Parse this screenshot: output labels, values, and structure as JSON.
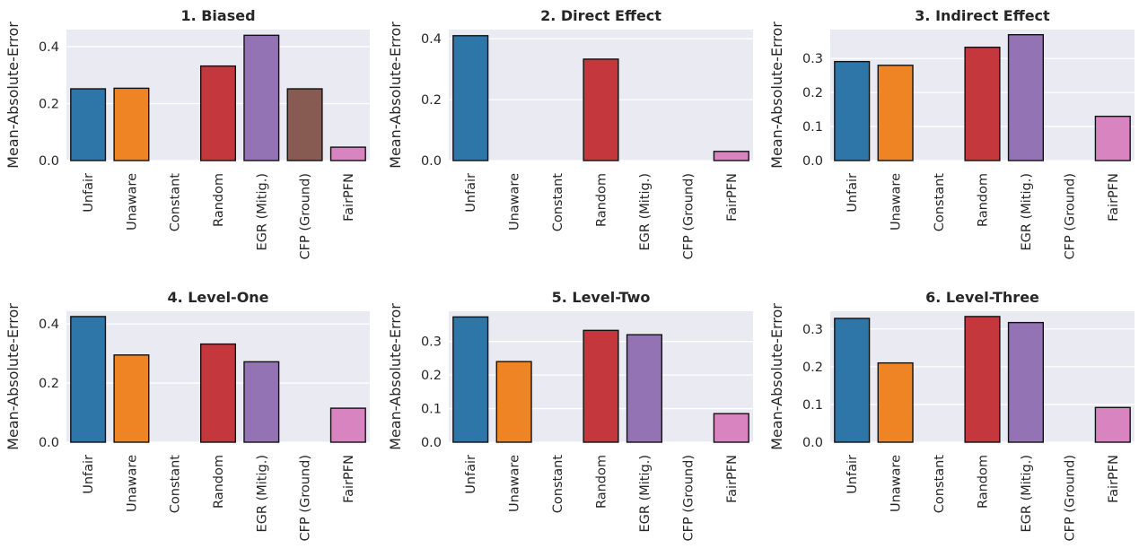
{
  "chart_data": [
    {
      "type": "bar",
      "title": "1. Biased",
      "ylabel": "Mean-Absolute-Error",
      "categories": [
        "Unfair",
        "Unaware",
        "Constant",
        "Random",
        "EGR (Mitig.)",
        "CFP (Ground)",
        "FairPFN"
      ],
      "values": [
        0.252,
        0.254,
        0.0,
        0.332,
        0.44,
        0.252,
        0.047
      ],
      "ylim": [
        0,
        0.46
      ],
      "yticks": [
        0.0,
        0.2,
        0.4
      ],
      "ytick_labels": [
        "0.0",
        "0.2",
        "0.4"
      ],
      "grid": true,
      "colors": [
        "#2e75a8",
        "#ee8424",
        "#31a031",
        "#c4373c",
        "#9373b3",
        "#875b52",
        "#d884c0"
      ]
    },
    {
      "type": "bar",
      "title": "2. Direct Effect",
      "ylabel": "Mean-Absolute-Error",
      "categories": [
        "Unfair",
        "Unaware",
        "Constant",
        "Random",
        "EGR (Mitig.)",
        "CFP (Ground)",
        "FairPFN"
      ],
      "values": [
        0.41,
        0.0,
        0.0,
        0.333,
        0.0,
        0.0,
        0.03
      ],
      "ylim": [
        0,
        0.43
      ],
      "yticks": [
        0.0,
        0.2,
        0.4
      ],
      "ytick_labels": [
        "0.0",
        "0.2",
        "0.4"
      ],
      "grid": true,
      "colors": [
        "#2e75a8",
        "#ee8424",
        "#31a031",
        "#c4373c",
        "#9373b3",
        "#875b52",
        "#d884c0"
      ]
    },
    {
      "type": "bar",
      "title": "3. Indirect Effect",
      "ylabel": "Mean-Absolute-Error",
      "categories": [
        "Unfair",
        "Unaware",
        "Constant",
        "Random",
        "EGR (Mitig.)",
        "CFP (Ground)",
        "FairPFN"
      ],
      "values": [
        0.291,
        0.28,
        0.0,
        0.333,
        0.37,
        0.0,
        0.13
      ],
      "ylim": [
        0,
        0.385
      ],
      "yticks": [
        0.0,
        0.1,
        0.2,
        0.3
      ],
      "ytick_labels": [
        "0.0",
        "0.1",
        "0.2",
        "0.3"
      ],
      "grid": true,
      "colors": [
        "#2e75a8",
        "#ee8424",
        "#31a031",
        "#c4373c",
        "#9373b3",
        "#875b52",
        "#d884c0"
      ]
    },
    {
      "type": "bar",
      "title": "4. Level-One",
      "ylabel": "Mean-Absolute-Error",
      "categories": [
        "Unfair",
        "Unaware",
        "Constant",
        "Random",
        "EGR (Mitig.)",
        "CFP (Ground)",
        "FairPFN"
      ],
      "values": [
        0.425,
        0.295,
        0.0,
        0.332,
        0.272,
        0.0,
        0.115
      ],
      "ylim": [
        0,
        0.443
      ],
      "yticks": [
        0.0,
        0.2,
        0.4
      ],
      "ytick_labels": [
        "0.0",
        "0.2",
        "0.4"
      ],
      "grid": true,
      "colors": [
        "#2e75a8",
        "#ee8424",
        "#31a031",
        "#c4373c",
        "#9373b3",
        "#875b52",
        "#d884c0"
      ]
    },
    {
      "type": "bar",
      "title": "5. Level-Two",
      "ylabel": "Mean-Absolute-Error",
      "categories": [
        "Unfair",
        "Unaware",
        "Constant",
        "Random",
        "EGR (Mitig.)",
        "CFP (Ground)",
        "FairPFN"
      ],
      "values": [
        0.373,
        0.24,
        0.0,
        0.333,
        0.32,
        0.0,
        0.085
      ],
      "ylim": [
        0,
        0.39
      ],
      "yticks": [
        0.0,
        0.1,
        0.2,
        0.3
      ],
      "ytick_labels": [
        "0.0",
        "0.1",
        "0.2",
        "0.3"
      ],
      "grid": true,
      "colors": [
        "#2e75a8",
        "#ee8424",
        "#31a031",
        "#c4373c",
        "#9373b3",
        "#875b52",
        "#d884c0"
      ]
    },
    {
      "type": "bar",
      "title": "6. Level-Three",
      "ylabel": "Mean-Absolute-Error",
      "categories": [
        "Unfair",
        "Unaware",
        "Constant",
        "Random",
        "EGR (Mitig.)",
        "CFP (Ground)",
        "FairPFN"
      ],
      "values": [
        0.328,
        0.21,
        0.0,
        0.333,
        0.317,
        0.0,
        0.092
      ],
      "ylim": [
        0,
        0.347
      ],
      "yticks": [
        0.0,
        0.1,
        0.2,
        0.3
      ],
      "ytick_labels": [
        "0.0",
        "0.1",
        "0.2",
        "0.3"
      ],
      "grid": true,
      "colors": [
        "#2e75a8",
        "#ee8424",
        "#31a031",
        "#c4373c",
        "#9373b3",
        "#875b52",
        "#d884c0"
      ]
    }
  ]
}
